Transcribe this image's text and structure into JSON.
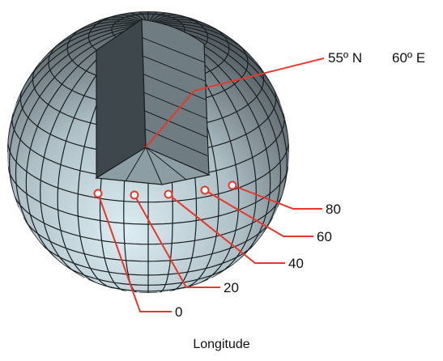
{
  "coordinate_label": {
    "latitude": "55º N",
    "longitude": "60º E"
  },
  "longitude_markers": [
    "0",
    "20",
    "40",
    "60",
    "80"
  ],
  "caption": "Longitude",
  "colors": {
    "globe_light": "#cfe5ee",
    "globe_mid": "#8fa5ae",
    "globe_dark": "#2d3438",
    "grid_line": "#1a1f22",
    "leader_line": "#e8372b",
    "marker_fill": "#ffffff"
  }
}
